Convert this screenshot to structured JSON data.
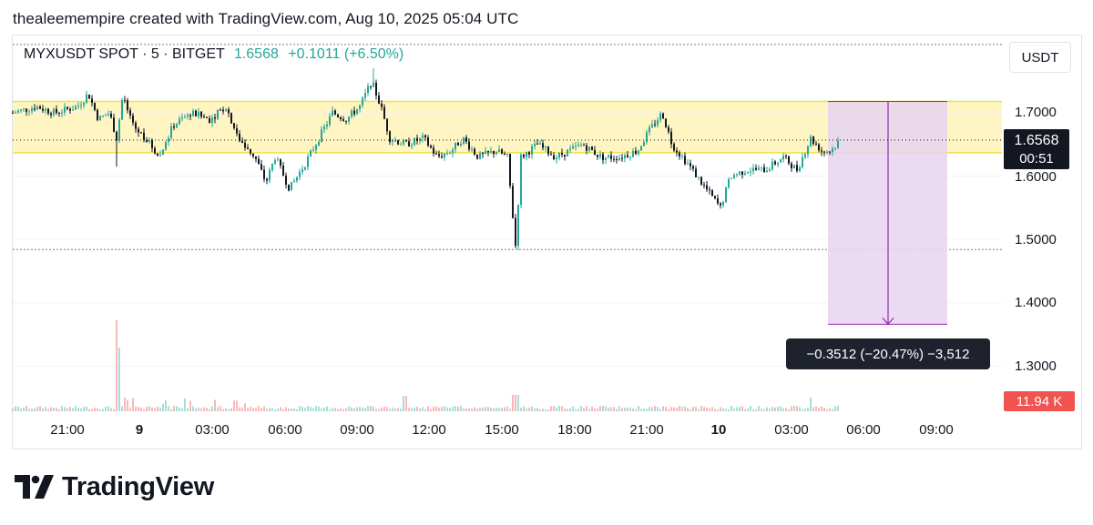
{
  "header": {
    "caption": "thealeemempire created with TradingView.com, Aug 10, 2025 05:04 UTC"
  },
  "legend": {
    "symbol_line": "MYXUSDT SPOT · 5 · BITGET",
    "last_price": "1.6568",
    "change": "+0.1011 (+6.50%)"
  },
  "currency_button": "USDT",
  "price_axis": {
    "labels": [
      "1.7000",
      "1.6000",
      "1.5000",
      "1.4000",
      "1.3000"
    ],
    "current_price": "1.6568",
    "countdown": "00:51",
    "volume_label": "11.94 K"
  },
  "time_axis": {
    "labels": [
      {
        "text": "21:00",
        "bold": false
      },
      {
        "text": "9",
        "bold": true
      },
      {
        "text": "03:00",
        "bold": false
      },
      {
        "text": "06:00",
        "bold": false
      },
      {
        "text": "09:00",
        "bold": false
      },
      {
        "text": "12:00",
        "bold": false
      },
      {
        "text": "15:00",
        "bold": false
      },
      {
        "text": "18:00",
        "bold": false
      },
      {
        "text": "21:00",
        "bold": false
      },
      {
        "text": "10",
        "bold": true
      },
      {
        "text": "03:00",
        "bold": false
      },
      {
        "text": "06:00",
        "bold": false
      },
      {
        "text": "09:00",
        "bold": false
      }
    ]
  },
  "measure_tool": {
    "label": "−0.3512 (−20.47%) −3,512"
  },
  "brand": {
    "name": "TradingView",
    "logo_icon": "tradingview-logo-icon"
  },
  "colors": {
    "up": "#26a69a",
    "down": "#131722",
    "zone_fill": "#fff5c2",
    "zone_border": "#f0e04a",
    "measure_fill": "#e6d3f0",
    "measure_line": "#9c27b0",
    "volume_tag": "#f05350"
  },
  "chart_data": {
    "type": "candlestick",
    "symbol": "MYXUSDT",
    "exchange": "BITGET",
    "interval": "5",
    "ylim": [
      1.25,
      1.82
    ],
    "resistance_zone": [
      1.637,
      1.718
    ],
    "dotted_levels": [
      1.808,
      1.484
    ],
    "measure": {
      "from": 1.718,
      "to": 1.366,
      "delta": -0.3512,
      "percent": -20.47
    },
    "key_points": [
      {
        "time": "Aug 8 18:00",
        "price": 1.69
      },
      {
        "time": "Aug 8 21:00",
        "price": 1.71
      },
      {
        "time": "Aug 9 00:00",
        "price": 1.68
      },
      {
        "time": "Aug 9 03:00",
        "price": 1.7
      },
      {
        "time": "Aug 9 06:00",
        "price": 1.59
      },
      {
        "time": "Aug 9 09:00",
        "price": 1.75
      },
      {
        "time": "Aug 9 12:00",
        "price": 1.65
      },
      {
        "time": "Aug 9 15:00",
        "price": 1.49
      },
      {
        "time": "Aug 9 18:00",
        "price": 1.65
      },
      {
        "time": "Aug 9 21:00",
        "price": 1.7
      },
      {
        "time": "Aug 10 00:00",
        "price": 1.55
      },
      {
        "time": "Aug 10 03:00",
        "price": 1.62
      },
      {
        "time": "Aug 10 05:00",
        "price": 1.657
      }
    ]
  }
}
